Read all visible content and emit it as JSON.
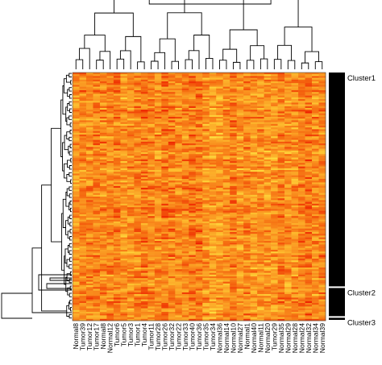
{
  "chart_data": {
    "type": "heatmap",
    "title": "",
    "xlabel": "",
    "ylabel": "",
    "samples": [
      "Normal8",
      "Tumor39",
      "Tumor12",
      "Tumor17",
      "Normal8",
      "Normal12",
      "Tumor6",
      "Tumor5",
      "Tumor3",
      "Tumor1",
      "Tumor4",
      "Tumor11",
      "Tumor28",
      "Tumor26",
      "Tumor32",
      "Tumor22",
      "Tumor33",
      "Tumor40",
      "Tumor36",
      "Tumor35",
      "Tumor34",
      "Normal36",
      "Normal14",
      "Normal10",
      "Normal27",
      "Normal1",
      "Normal40",
      "Normal11",
      "Normal20",
      "Tumor29",
      "Normal35",
      "Normal29",
      "Normal28",
      "Normal24",
      "Normal32",
      "Normal34",
      "Normal39"
    ],
    "clusters": [
      {
        "name": "Cluster1",
        "fraction": 0.865
      },
      {
        "name": "Cluster2",
        "fraction": 0.12
      },
      {
        "name": "Cluster3",
        "fraction": 0.015
      }
    ],
    "color_scale": [
      "#ee2200",
      "#f56a10",
      "#fa9420",
      "#fdc030",
      "#fff34a"
    ],
    "dendrogram_top": true,
    "dendrogram_left": true,
    "cluster_bar_color": "#000000",
    "legend": "none"
  }
}
